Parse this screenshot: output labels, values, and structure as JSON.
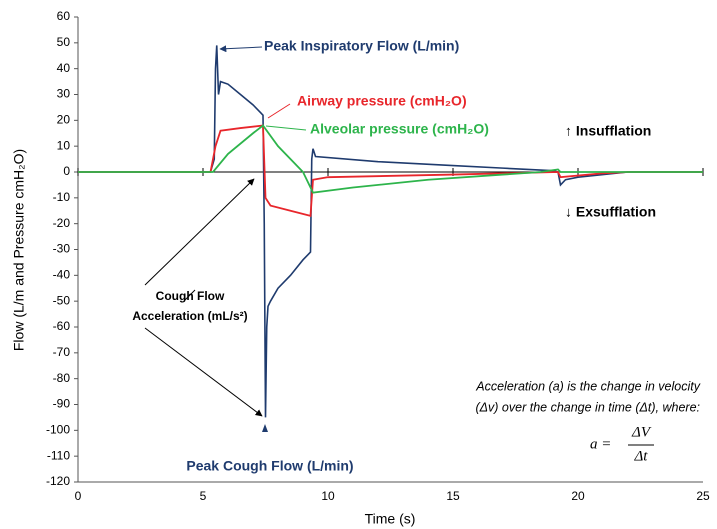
{
  "chart_data": {
    "type": "line",
    "xlabel": "Time (s)",
    "ylabel": "Flow (L/m and Pressure cmH₂O)",
    "xlim": [
      0,
      25
    ],
    "xticks": [
      0,
      5,
      10,
      15,
      20,
      25
    ],
    "ylim": [
      -120,
      60
    ],
    "yticks": [
      -120,
      -110,
      -100,
      -90,
      -80,
      -70,
      -60,
      -50,
      -40,
      -30,
      -20,
      -10,
      0,
      10,
      20,
      30,
      40,
      50,
      60
    ],
    "grid": false,
    "series": [
      {
        "name": "Peak Inspiratory Flow (L/min)",
        "color": "#1f3b6e",
        "x": [
          0,
          5.3,
          5.45,
          5.5,
          5.55,
          5.62,
          5.7,
          6,
          6.5,
          7,
          7.3,
          7.4,
          7.45,
          7.5,
          7.55,
          7.6,
          7.7,
          8,
          8.5,
          9,
          9.3,
          9.35,
          9.4,
          9.5,
          12,
          15,
          17,
          19,
          19.2,
          19.3,
          19.5,
          20,
          21,
          22,
          25
        ],
        "values": [
          0,
          0,
          5,
          40,
          49,
          30,
          35,
          34,
          30,
          26,
          23,
          22,
          -20,
          -95,
          -60,
          -52,
          -50,
          -45,
          -40,
          -34,
          -31,
          5,
          9,
          6,
          4,
          2.5,
          1.5,
          0.5,
          0,
          -5,
          -3,
          -2,
          -1,
          0,
          0
        ]
      },
      {
        "name": "Airway pressure (cmH₂O)",
        "color": "#e8262b",
        "x": [
          0,
          5.3,
          5.5,
          5.6,
          5.7,
          6.5,
          7.4,
          7.5,
          7.7,
          8.5,
          9.3,
          9.4,
          10,
          15,
          19.2,
          19.3,
          21,
          22,
          25
        ],
        "values": [
          0,
          0,
          10,
          13,
          16,
          17,
          18,
          -10,
          -13,
          -15,
          -17,
          -3,
          -2,
          -1,
          0,
          -2,
          -0.5,
          0,
          0
        ]
      },
      {
        "name": "Alveolar pressure (cmH₂O)",
        "color": "#2db44b",
        "x": [
          0,
          5.4,
          6,
          7,
          7.4,
          8,
          9,
          9.4,
          11,
          14,
          17,
          18.5,
          19.2,
          19.3,
          25
        ],
        "values": [
          0,
          0,
          7,
          15,
          18,
          10,
          0,
          -8,
          -6,
          -3,
          -1,
          0,
          1,
          0,
          0
        ]
      }
    ],
    "annotations": [
      "↑ Insufflation",
      "↓ Exsufflation",
      "Cough Flow",
      "Acceleration (mL/s²)",
      "Acceleration (a) is the change in velocity",
      "(Δv) over the change in time (Δt), where:",
      "a =",
      "ΔV",
      "Δt",
      "Peak Cough Flow (L/min)"
    ]
  }
}
